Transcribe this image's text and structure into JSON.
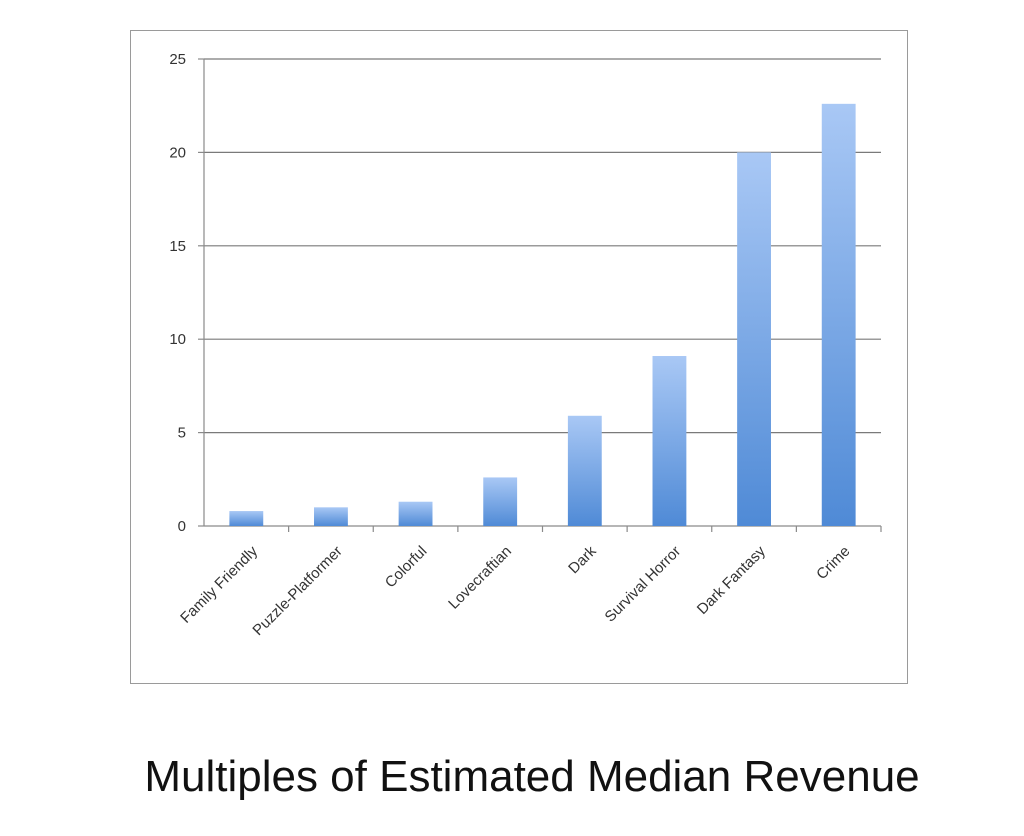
{
  "chart_data": {
    "type": "bar",
    "title": "",
    "xlabel": "",
    "ylabel": "",
    "ylim": [
      0,
      25
    ],
    "yticks": [
      0,
      5,
      10,
      15,
      20,
      25
    ],
    "grid": true,
    "legend": "none",
    "categories": [
      "Family Friendly",
      "Puzzle-Platformer",
      "Colorful",
      "Lovecraftian",
      "Dark",
      "Survival Horror",
      "Dark Fantasy",
      "Crime"
    ],
    "values": [
      0.8,
      1.0,
      1.3,
      2.6,
      5.9,
      9.1,
      20.0,
      22.6
    ],
    "colors": {
      "bar_top": "#a9c8f5",
      "bar_bottom": "#4f8ad6",
      "grid": "#7a7a7a"
    }
  },
  "caption": "Multiples of Estimated Median Revenue"
}
